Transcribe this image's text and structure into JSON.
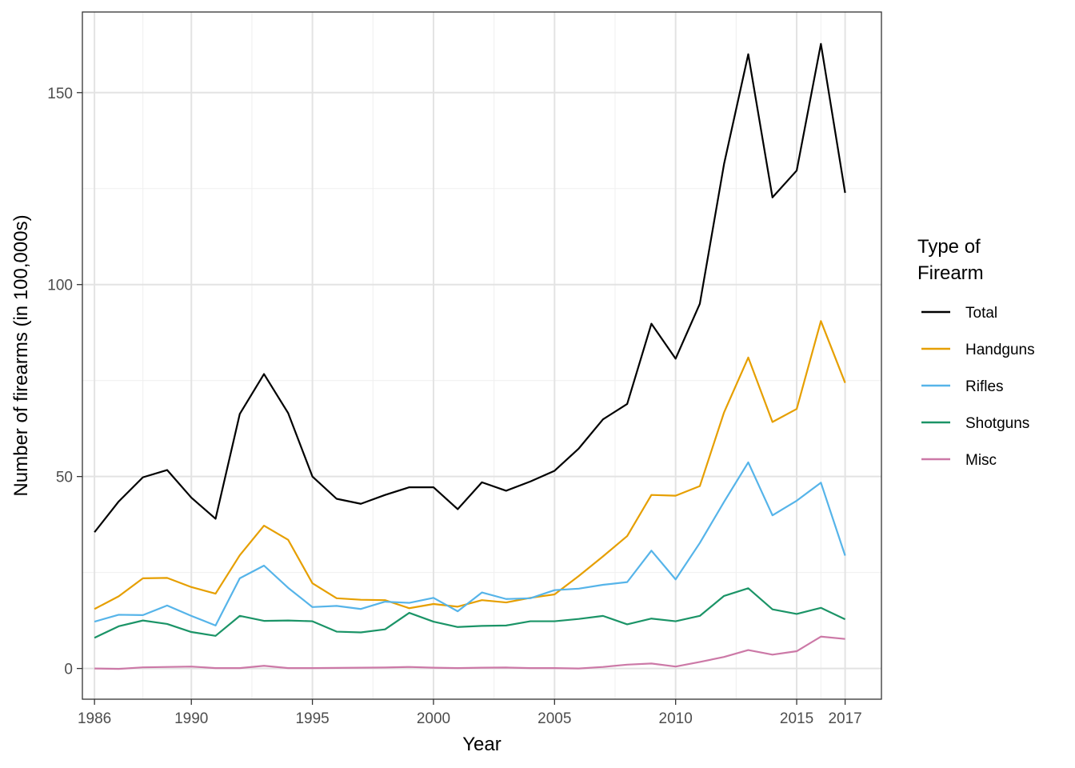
{
  "chart_data": {
    "type": "line",
    "xlabel": "Year",
    "ylabel": "Number of firearms (in 100,000s)",
    "legend_title": [
      "Type of",
      "Firearm"
    ],
    "legend_position": "right",
    "grid": true,
    "xlim": [
      1985.5,
      2018.5
    ],
    "ylim": [
      -8,
      171
    ],
    "x_ticks": [
      1986,
      1990,
      1995,
      2000,
      2005,
      2010,
      2015,
      2017
    ],
    "x_minor_ticks": [
      1988,
      1992.5,
      1997.5,
      2002.5,
      2007.5,
      2012.5,
      2016
    ],
    "y_ticks": [
      0,
      50,
      100,
      150
    ],
    "y_minor_ticks": [
      25,
      75,
      125
    ],
    "x": [
      1986,
      1987,
      1988,
      1989,
      1990,
      1991,
      1992,
      1993,
      1994,
      1995,
      1996,
      1997,
      1998,
      1999,
      2000,
      2001,
      2002,
      2003,
      2004,
      2005,
      2006,
      2007,
      2008,
      2009,
      2010,
      2011,
      2012,
      2013,
      2014,
      2015,
      2016,
      2017
    ],
    "series": [
      {
        "name": "Total",
        "color": "#000000",
        "values": [
          35.5,
          43.5,
          49.8,
          51.7,
          44.5,
          39.0,
          66.3,
          76.7,
          66.5,
          50.0,
          44.2,
          42.9,
          45.2,
          47.2,
          47.2,
          41.5,
          48.5,
          46.3,
          48.7,
          51.5,
          57.3,
          64.9,
          68.9,
          89.8,
          80.7,
          95.0,
          131.4,
          160.0,
          122.7,
          129.7,
          162.7,
          123.9
        ]
      },
      {
        "name": "Handguns",
        "color": "#E69F00",
        "values": [
          15.5,
          18.8,
          23.5,
          23.6,
          21.2,
          19.5,
          29.5,
          37.2,
          33.5,
          22.2,
          18.3,
          17.9,
          17.8,
          15.7,
          16.8,
          16.1,
          17.8,
          17.2,
          18.4,
          19.3,
          24.1,
          29.2,
          34.5,
          45.2,
          45.0,
          47.5,
          66.7,
          81.0,
          64.2,
          67.6,
          90.5,
          74.4
        ]
      },
      {
        "name": "Rifles",
        "color": "#56B4E9",
        "values": [
          12.2,
          14.0,
          13.9,
          16.4,
          13.7,
          11.2,
          23.5,
          26.8,
          21.0,
          16.0,
          16.3,
          15.5,
          17.4,
          17.1,
          18.4,
          14.9,
          19.8,
          18.1,
          18.3,
          20.4,
          20.8,
          21.8,
          22.5,
          30.7,
          23.2,
          32.7,
          43.4,
          53.7,
          39.9,
          43.7,
          48.4,
          29.4
        ]
      },
      {
        "name": "Shotguns",
        "color": "#1B9467",
        "values": [
          8.0,
          11.0,
          12.5,
          11.6,
          9.5,
          8.5,
          13.7,
          12.4,
          12.5,
          12.3,
          9.6,
          9.4,
          10.2,
          14.5,
          12.2,
          10.8,
          11.1,
          11.2,
          12.3,
          12.3,
          12.9,
          13.7,
          11.5,
          13.0,
          12.3,
          13.7,
          18.9,
          20.9,
          15.4,
          14.2,
          15.8,
          12.8
        ]
      },
      {
        "name": "Misc",
        "color": "#CC79A7",
        "values": [
          0.0,
          -0.1,
          0.3,
          0.4,
          0.5,
          0.1,
          0.1,
          0.7,
          0.1,
          0.1,
          0.15,
          0.2,
          0.25,
          0.4,
          0.2,
          0.1,
          0.2,
          0.25,
          0.1,
          0.1,
          0.0,
          0.4,
          1.0,
          1.3,
          0.5,
          1.7,
          3.0,
          4.8,
          3.6,
          4.5,
          8.3,
          7.7
        ]
      }
    ]
  }
}
